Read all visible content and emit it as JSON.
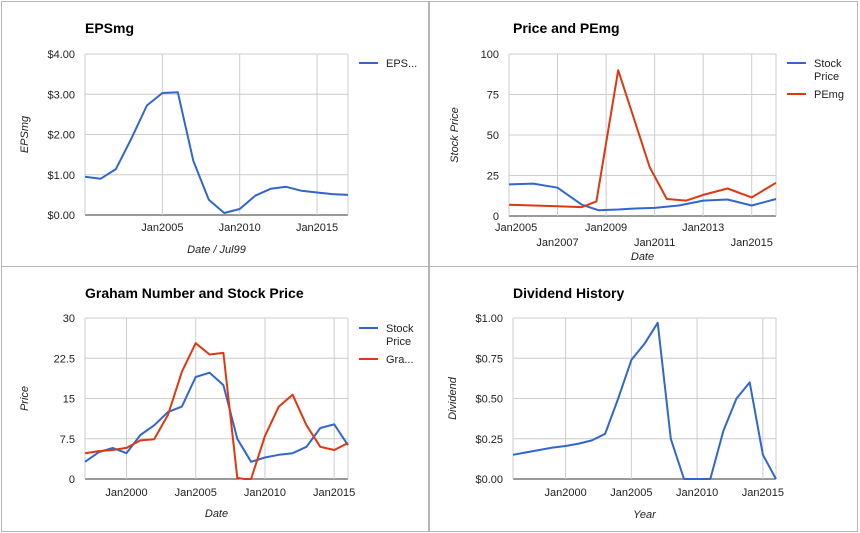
{
  "chart_data": [
    {
      "id": "eps",
      "type": "line",
      "title": "EPSmg",
      "xlabel": "Date / Jul99",
      "ylabel": "EPSmg",
      "ylim": [
        0,
        4
      ],
      "yticks": [
        "$0.00",
        "$1.00",
        "$2.00",
        "$3.00",
        "$4.00"
      ],
      "ytick_values": [
        0,
        1,
        2,
        3,
        4
      ],
      "xlim": [
        2000,
        2017
      ],
      "xticks": [
        "Jan2005",
        "Jan2010",
        "Jan2015"
      ],
      "xtick_values": [
        2005,
        2010,
        2015
      ],
      "grid": true,
      "legend": "right",
      "series": [
        {
          "name": "EPS...",
          "color": "#3366cc",
          "x": [
            2000,
            2001,
            2002,
            2003,
            2004,
            2005,
            2006,
            2007,
            2008,
            2009,
            2010,
            2011,
            2012,
            2013,
            2014,
            2015,
            2016,
            2017
          ],
          "values": [
            0.95,
            0.9,
            1.14,
            1.9,
            2.72,
            3.03,
            3.05,
            1.35,
            0.38,
            0.05,
            0.15,
            0.48,
            0.65,
            0.7,
            0.6,
            0.56,
            0.52,
            0.5
          ]
        }
      ]
    },
    {
      "id": "price-pe",
      "type": "line",
      "title": "Price and PEmg",
      "xlabel": "Date",
      "ylabel": "Stock Price",
      "ylim": [
        0,
        100
      ],
      "yticks": [
        "0",
        "25",
        "50",
        "75",
        "100"
      ],
      "ytick_values": [
        0,
        25,
        50,
        75,
        100
      ],
      "xlim": [
        2005,
        2016
      ],
      "xticks": [
        "Jan2005",
        "Jan2007",
        "Jan2009",
        "Jan2011",
        "Jan2013",
        "Jan2015"
      ],
      "xtick_values": [
        2005,
        2007,
        2009,
        2011,
        2013,
        2015
      ],
      "grid": true,
      "legend": "right",
      "series": [
        {
          "name": "Stock Price",
          "legend_lines": [
            "Stock",
            "Price"
          ],
          "color": "#3366cc",
          "x": [
            2005,
            2006,
            2007,
            2008,
            2008.7,
            2009.5,
            2010,
            2011,
            2012,
            2013,
            2014,
            2015,
            2016
          ],
          "values": [
            19.5,
            20,
            17.5,
            7,
            3.5,
            4,
            4.5,
            5,
            6.5,
            9.5,
            10.2,
            6.5,
            10.5
          ]
        },
        {
          "name": "PEmg",
          "legend_lines": [
            "PEmg"
          ],
          "color": "#dc3912",
          "x": [
            2005,
            2006,
            2007,
            2008,
            2008.6,
            2009.5,
            2010.8,
            2011.5,
            2012.3,
            2013,
            2014,
            2015,
            2016
          ],
          "values": [
            7,
            6.5,
            6,
            5.5,
            9,
            90,
            30,
            10.5,
            9.5,
            13,
            17,
            11.5,
            20.5
          ]
        }
      ]
    },
    {
      "id": "graham",
      "type": "line",
      "title": "Graham Number and Stock Price",
      "xlabel": "Date",
      "ylabel": "Price",
      "ylim": [
        0,
        30
      ],
      "yticks": [
        "0",
        "7.5",
        "15",
        "22.5",
        "30"
      ],
      "ytick_values": [
        0,
        7.5,
        15,
        22.5,
        30
      ],
      "xlim": [
        1997,
        2016
      ],
      "xticks": [
        "Jan2000",
        "Jan2005",
        "Jan2010",
        "Jan2015"
      ],
      "xtick_values": [
        2000,
        2005,
        2010,
        2015
      ],
      "grid": true,
      "legend": "right",
      "series": [
        {
          "name": "Stock Price",
          "legend_lines": [
            "Stock",
            "Price"
          ],
          "color": "#3366cc",
          "x": [
            1997,
            1998,
            1999,
            2000,
            2001,
            2002,
            2003,
            2004,
            2005,
            2006,
            2007,
            2008,
            2009,
            2010,
            2011,
            2012,
            2013,
            2014,
            2015,
            2016
          ],
          "values": [
            3.2,
            5,
            5.8,
            4.8,
            8.2,
            10,
            12.5,
            13.5,
            19,
            19.8,
            17.5,
            7.5,
            3.2,
            4,
            4.5,
            4.8,
            6,
            9.5,
            10.2,
            6.3
          ]
        },
        {
          "name": "Gra...",
          "legend_lines": [
            "Gra..."
          ],
          "color": "#dc3912",
          "x": [
            1997,
            1998,
            1999,
            2000,
            2001,
            2002,
            2003,
            2004,
            2005,
            2006,
            2007,
            2008,
            2008.5,
            2009,
            2010,
            2011,
            2012,
            2013,
            2014,
            2015,
            2016
          ],
          "values": [
            4.8,
            5.2,
            5.4,
            5.8,
            7.2,
            7.4,
            12,
            20,
            25.3,
            23.2,
            23.5,
            0.2,
            0,
            0,
            8,
            13.5,
            15.7,
            10,
            6,
            5.4,
            6.7
          ]
        }
      ]
    },
    {
      "id": "dividend",
      "type": "line",
      "title": "Dividend History",
      "xlabel": "Year",
      "ylabel": "Dividend",
      "ylim": [
        0,
        1
      ],
      "yticks": [
        "$0.00",
        "$0.25",
        "$0.50",
        "$0.75",
        "$1.00"
      ],
      "ytick_values": [
        0,
        0.25,
        0.5,
        0.75,
        1
      ],
      "xlim": [
        1996,
        2016
      ],
      "xticks": [
        "Jan2000",
        "Jan2005",
        "Jan2010",
        "Jan2015"
      ],
      "xtick_values": [
        2000,
        2005,
        2010,
        2015
      ],
      "grid": true,
      "legend": "none",
      "series": [
        {
          "name": "",
          "color": "#3366cc",
          "x": [
            1996,
            1997,
            1998,
            1999,
            2000,
            2001,
            2002,
            2003,
            2004,
            2005,
            2006,
            2007,
            2008,
            2009,
            2010,
            2011,
            2012,
            2013,
            2014,
            2015,
            2016
          ],
          "values": [
            0.15,
            0.165,
            0.18,
            0.195,
            0.205,
            0.22,
            0.24,
            0.28,
            0.5,
            0.74,
            0.84,
            0.97,
            0.25,
            0,
            0,
            0,
            0.3,
            0.5,
            0.6,
            0.15,
            0
          ]
        }
      ]
    }
  ]
}
